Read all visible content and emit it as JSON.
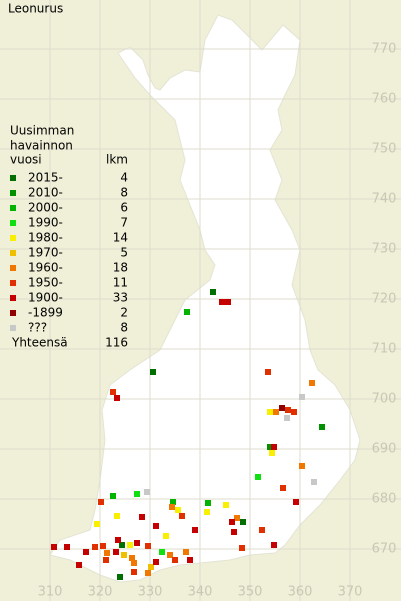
{
  "chart_data": {
    "type": "map",
    "title": "Leonurus",
    "legend_title": [
      "Uusimman",
      "havainnon",
      "vuosi"
    ],
    "count_header": "lkm",
    "xlim": [
      300,
      380
    ],
    "ylim": [
      660,
      780
    ],
    "xticks": [
      310,
      320,
      330,
      340,
      350,
      360,
      370
    ],
    "yticks": [
      670,
      680,
      690,
      700,
      710,
      720,
      730,
      740,
      750,
      760,
      770
    ],
    "grid": true,
    "total_label": "Yhteensä",
    "total": 116,
    "series": [
      {
        "name": "2015-",
        "count": 4,
        "color": "#006f00",
        "x": [
          342.6,
          330.6,
          348.6,
          324.4,
          324
        ],
        "y": [
          721.4,
          705.4,
          675.4,
          670.8,
          664.4
        ]
      },
      {
        "name": "2010-",
        "count": 8,
        "color": "#009000",
        "x": [
          364.4,
          354
        ],
        "y": [
          694.4,
          690.4
        ]
      },
      {
        "name": "2000-",
        "count": 6,
        "color": "#00b400",
        "x": [
          337.4,
          322.6,
          334.6,
          341.6
        ],
        "y": [
          717.4,
          680.6,
          679.4,
          679.2
        ]
      },
      {
        "name": "1990-",
        "count": 7,
        "color": "#10e010",
        "x": [
          351.6,
          327.4,
          332.4
        ],
        "y": [
          684.4,
          681,
          669.4
        ]
      },
      {
        "name": "1980-",
        "count": 14,
        "color": "#f8f000",
        "x": [
          354,
          354.4,
          335.6,
          341.4,
          345.2,
          323.4,
          319.4,
          333.2,
          326
        ],
        "y": [
          697.4,
          689.2,
          677.8,
          677.4,
          678.8,
          676.6,
          675,
          672.6,
          670.8
        ]
      },
      {
        "name": "1970-",
        "count": 5,
        "color": "#f0c000",
        "x": [
          324.8,
          330.2
        ],
        "y": [
          668.8,
          666.4
        ]
      },
      {
        "name": "1960-",
        "count": 18,
        "color": "#f07800",
        "x": [
          362.4,
          355.2,
          360.4,
          334.4,
          347.4,
          321.4,
          326.4,
          334,
          337.2,
          329.6,
          326.8
        ],
        "y": [
          703.2,
          697.4,
          686.6,
          678.4,
          676.2,
          669.2,
          668.2,
          668.8,
          669.4,
          665.2,
          667.2
        ]
      },
      {
        "name": "1950-",
        "count": 11,
        "color": "#e03000",
        "x": [
          322.6,
          353.6,
          357.6,
          358.8,
          356.6,
          320.2,
          336.4,
          352.4,
          319,
          320.6,
          335,
          348.4,
          326.8,
          321.2,
          329.6
        ],
        "y": [
          701.4,
          705.4,
          697.8,
          697.4,
          682.2,
          679.4,
          676.6,
          673.8,
          670.4,
          670.6,
          667.8,
          670.2,
          665.4,
          667.8,
          670.6
        ]
      },
      {
        "name": "1900-",
        "count": 33,
        "color": "#c40000",
        "x": [
          323.4,
          344.4,
          345.6,
          354.8,
          359.2,
          328.4,
          346.4,
          346.8,
          331.2,
          339,
          310.8,
          313.4,
          317.2,
          323.2,
          327.4,
          338,
          354.8,
          331.2,
          323.6,
          315.8
        ],
        "y": [
          700.2,
          719.4,
          719.4,
          690.4,
          679.4,
          676.4,
          675.4,
          673.4,
          674.6,
          673.8,
          670.4,
          670.4,
          669.4,
          669.4,
          671.2,
          667.8,
          670.8,
          667.4,
          671.8,
          666.8
        ]
      },
      {
        "name": "-1899",
        "count": 2,
        "color": "#900000",
        "x": [
          356.4
        ],
        "y": [
          698.2
        ]
      },
      {
        "name": "???",
        "count": 8,
        "color": "#c8c8c8",
        "x": [
          360.4,
          357.4,
          362.8,
          329.4
        ],
        "y": [
          700.4,
          696.2,
          683.4,
          681.4
        ]
      }
    ]
  }
}
